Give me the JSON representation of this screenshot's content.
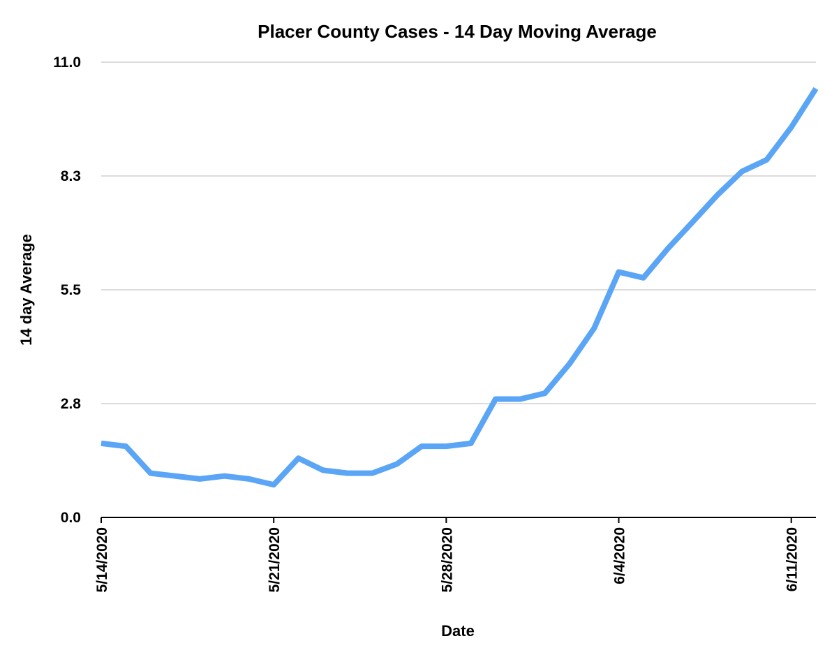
{
  "chart_data": {
    "type": "line",
    "title": "Placer County Cases - 14 Day Moving Average",
    "xlabel": "Date",
    "ylabel": "14 day Average",
    "ylim": [
      0,
      11.0
    ],
    "y_ticks": [
      "0.0",
      "2.8",
      "5.5",
      "8.3",
      "11.0"
    ],
    "y_tick_values": [
      0,
      2.75,
      5.5,
      8.25,
      11.0
    ],
    "grid": true,
    "legend": "none",
    "x": [
      "5/14/2020",
      "5/15/2020",
      "5/16/2020",
      "5/17/2020",
      "5/18/2020",
      "5/19/2020",
      "5/20/2020",
      "5/21/2020",
      "5/22/2020",
      "5/23/2020",
      "5/24/2020",
      "5/25/2020",
      "5/26/2020",
      "5/27/2020",
      "5/28/2020",
      "5/29/2020",
      "5/30/2020",
      "5/31/2020",
      "6/1/2020",
      "6/2/2020",
      "6/3/2020",
      "6/4/2020",
      "6/5/2020",
      "6/6/2020",
      "6/7/2020",
      "6/8/2020",
      "6/9/2020",
      "6/10/2020",
      "6/11/2020",
      "6/12/2020"
    ],
    "x_tick_labels": [
      "5/14/2020",
      "5/21/2020",
      "5/28/2020",
      "6/4/2020",
      "6/11/2020"
    ],
    "series": [
      {
        "color": "#5aa5f5",
        "values": [
          1.79,
          1.72,
          1.07,
          1.0,
          0.93,
          1.0,
          0.93,
          0.79,
          1.43,
          1.14,
          1.07,
          1.07,
          1.29,
          1.72,
          1.72,
          1.79,
          2.86,
          2.86,
          3.0,
          3.71,
          4.57,
          5.93,
          5.79,
          6.5,
          7.14,
          7.79,
          8.36,
          8.64,
          9.43,
          10.36
        ]
      }
    ]
  }
}
